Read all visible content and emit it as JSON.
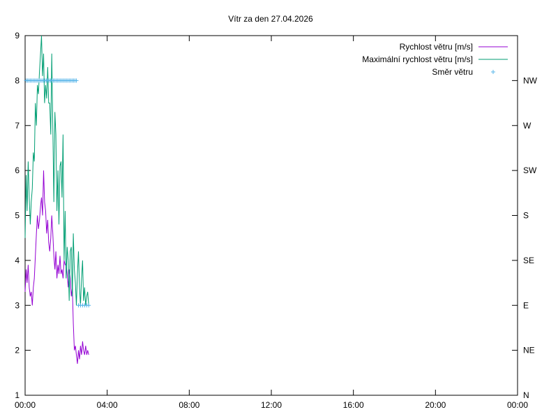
{
  "chart_data": {
    "type": "line",
    "title": "Vítr za den 27.04.2026",
    "xlabel": "",
    "ylabel": "",
    "x_unit": "hours",
    "xlim": [
      0,
      24
    ],
    "ylim": [
      1,
      9
    ],
    "x_ticks": [
      {
        "value": 0,
        "label": "00:00"
      },
      {
        "value": 4,
        "label": "04:00"
      },
      {
        "value": 8,
        "label": "08:00"
      },
      {
        "value": 12,
        "label": "12:00"
      },
      {
        "value": 16,
        "label": "16:00"
      },
      {
        "value": 20,
        "label": "20:00"
      },
      {
        "value": 24,
        "label": "00:00"
      }
    ],
    "y_ticks": [
      1,
      2,
      3,
      4,
      5,
      6,
      7,
      8,
      9
    ],
    "y2_ticks": [
      {
        "value": 1,
        "label": "N"
      },
      {
        "value": 2,
        "label": "NE"
      },
      {
        "value": 3,
        "label": "E"
      },
      {
        "value": 4,
        "label": "SE"
      },
      {
        "value": 5,
        "label": "S"
      },
      {
        "value": 6,
        "label": "SW"
      },
      {
        "value": 7,
        "label": "W"
      },
      {
        "value": 8,
        "label": "NW"
      }
    ],
    "grid": false,
    "legend_position": "top-right",
    "series": [
      {
        "name": "Rychlost větru [m/s]",
        "color": "#9400d3",
        "style": "line",
        "x": [
          0.0,
          0.05,
          0.1,
          0.15,
          0.2,
          0.25,
          0.3,
          0.35,
          0.4,
          0.45,
          0.5,
          0.55,
          0.6,
          0.65,
          0.7,
          0.75,
          0.8,
          0.85,
          0.9,
          0.95,
          1.0,
          1.05,
          1.1,
          1.15,
          1.2,
          1.25,
          1.3,
          1.35,
          1.4,
          1.45,
          1.5,
          1.55,
          1.6,
          1.65,
          1.7,
          1.75,
          1.8,
          1.85,
          1.9,
          1.95,
          2.0,
          2.05,
          2.1,
          2.15,
          2.2,
          2.25,
          2.3,
          2.35,
          2.4,
          2.45,
          2.5,
          2.55,
          2.6,
          2.65,
          2.7,
          2.75,
          2.8,
          2.85,
          2.9,
          2.95,
          3.0,
          3.05,
          3.1
        ],
        "values": [
          3.3,
          3.8,
          3.5,
          3.9,
          3.4,
          3.2,
          3.3,
          3.0,
          3.4,
          3.6,
          4.1,
          4.6,
          5.0,
          4.7,
          4.9,
          5.2,
          5.4,
          5.0,
          6.0,
          5.3,
          5.1,
          4.6,
          4.9,
          4.4,
          4.2,
          4.5,
          5.0,
          4.6,
          4.1,
          3.8,
          4.2,
          3.6,
          3.9,
          3.7,
          4.1,
          3.7,
          3.8,
          3.6,
          4.0,
          3.9,
          3.9,
          3.7,
          3.4,
          3.8,
          3.6,
          3.2,
          3.4,
          2.6,
          2.0,
          2.1,
          1.9,
          1.7,
          2.0,
          1.8,
          2.1,
          1.9,
          2.2,
          2.0,
          1.9,
          2.1,
          1.9,
          2.0,
          1.9
        ]
      },
      {
        "name": "Maximální rychlost větru [m/s]",
        "color": "#009e73",
        "style": "line",
        "x": [
          0.0,
          0.05,
          0.1,
          0.15,
          0.2,
          0.25,
          0.3,
          0.35,
          0.4,
          0.45,
          0.5,
          0.55,
          0.6,
          0.65,
          0.7,
          0.75,
          0.8,
          0.85,
          0.9,
          0.95,
          1.0,
          1.05,
          1.1,
          1.15,
          1.2,
          1.25,
          1.3,
          1.35,
          1.4,
          1.45,
          1.5,
          1.55,
          1.6,
          1.65,
          1.7,
          1.75,
          1.8,
          1.85,
          1.9,
          1.95,
          2.0,
          2.05,
          2.1,
          2.15,
          2.2,
          2.25,
          2.3,
          2.35,
          2.4,
          2.45,
          2.5,
          2.55,
          2.6,
          2.65,
          2.7,
          2.75,
          2.8,
          2.85,
          2.9,
          2.95,
          3.0,
          3.05,
          3.1
        ],
        "values": [
          4.5,
          5.9,
          5.1,
          6.2,
          5.4,
          4.8,
          5.3,
          5.6,
          6.4,
          6.2,
          7.5,
          7.0,
          7.9,
          7.7,
          8.2,
          8.6,
          9.0,
          8.1,
          8.6,
          7.5,
          7.9,
          7.6,
          8.3,
          7.5,
          7.5,
          6.8,
          8.6,
          7.0,
          5.3,
          7.3,
          6.8,
          5.1,
          6.0,
          4.8,
          6.1,
          6.2,
          5.4,
          6.8,
          4.0,
          5.1,
          3.6,
          4.3,
          4.0,
          3.1,
          4.2,
          4.3,
          3.2,
          4.6,
          3.8,
          3.5,
          3.0,
          3.7,
          4.2,
          3.4,
          3.0,
          3.6,
          4.0,
          3.1,
          3.4,
          3.0,
          3.2,
          3.3,
          3.0
        ]
      },
      {
        "name": "Směr větru",
        "color": "#56b4e9",
        "style": "points",
        "x": [
          0.05,
          0.12,
          0.19,
          0.26,
          0.33,
          0.4,
          0.47,
          0.54,
          0.61,
          0.68,
          0.75,
          0.82,
          0.89,
          0.96,
          1.03,
          1.1,
          1.17,
          1.24,
          1.31,
          1.38,
          1.45,
          1.52,
          1.59,
          1.66,
          1.73,
          1.8,
          1.87,
          1.94,
          2.01,
          2.08,
          2.15,
          2.22,
          2.29,
          2.36,
          2.43,
          2.5,
          2.6,
          2.7,
          2.8,
          2.9,
          3.0,
          3.1
        ],
        "values": [
          8,
          8,
          8,
          8,
          8,
          8,
          8,
          8,
          8,
          8,
          8,
          8,
          8,
          8,
          8,
          8,
          8,
          8,
          8,
          8,
          8,
          8,
          8,
          8,
          8,
          8,
          8,
          8,
          8,
          8,
          8,
          8,
          8,
          8,
          8,
          8,
          3,
          3,
          3,
          3,
          3,
          3
        ]
      }
    ]
  }
}
